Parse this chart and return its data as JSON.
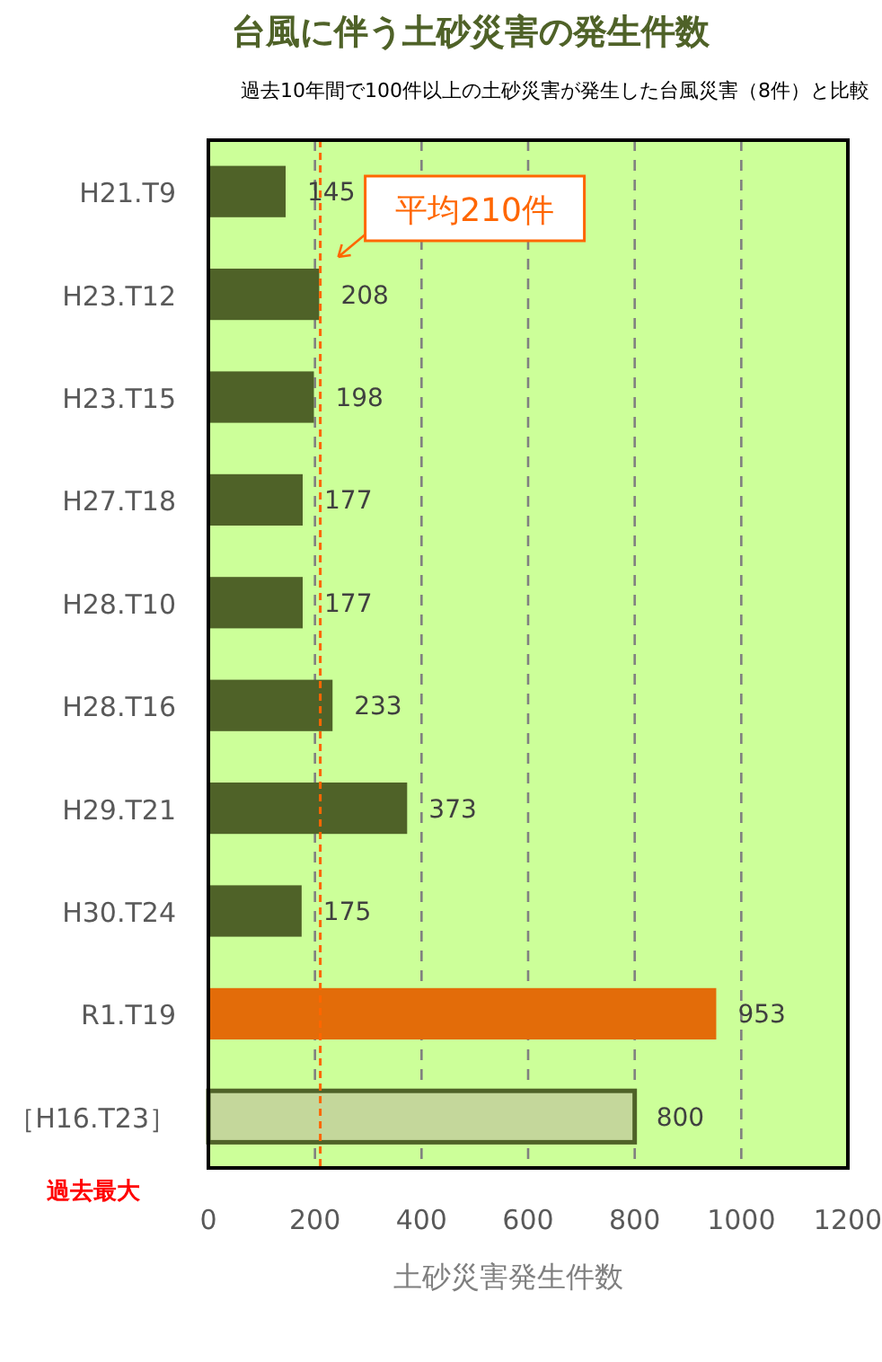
{
  "chart_data": {
    "type": "bar",
    "orientation": "horizontal",
    "title": "台風に伴う土砂災害の発生件数",
    "subtitle": "過去10年間で100件以上の土砂災害が発生した台風災害（8件）と比較",
    "xlabel": "土砂災害発生件数",
    "categories": [
      "H21.T9",
      "H23.T12",
      "H23.T15",
      "H27.T18",
      "H28.T10",
      "H28.T16",
      "H29.T21",
      "H30.T24",
      "R1.T19",
      "［H16.T23］"
    ],
    "values": [
      145,
      208,
      198,
      177,
      177,
      233,
      373,
      175,
      953,
      800
    ],
    "colors": [
      "#4f6228",
      "#4f6228",
      "#4f6228",
      "#4f6228",
      "#4f6228",
      "#4f6228",
      "#4f6228",
      "#4f6228",
      "#e36c09",
      "#c4d79b"
    ],
    "data_labels": true,
    "xlim": [
      0,
      1200
    ],
    "xticks": [
      0,
      200,
      400,
      600,
      800,
      1000,
      1200
    ],
    "grid": "x",
    "ref_lines": [
      {
        "axis": "x",
        "value": 210,
        "label": "平均210件",
        "color": "#ff6600",
        "line_style": "dashed"
      }
    ],
    "annotations": [
      "過去最大"
    ]
  }
}
